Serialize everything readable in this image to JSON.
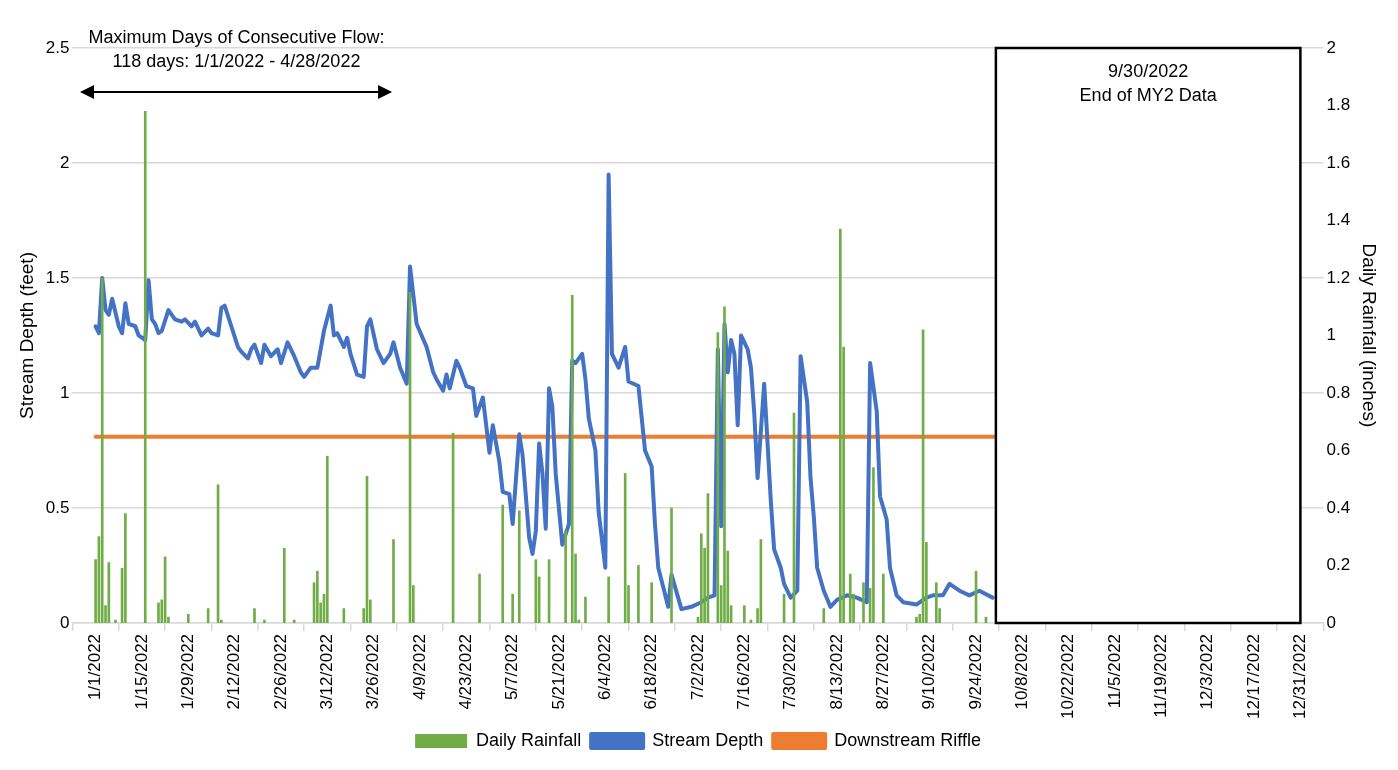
{
  "chart_data": {
    "type": "line",
    "xlim": [
      "2022-01-01",
      "2022-12-31"
    ],
    "xticks": [
      {
        "value": "2022-01-01",
        "label": "1/1/2022"
      },
      {
        "value": "2022-01-15",
        "label": "1/15/2022"
      },
      {
        "value": "2022-01-29",
        "label": "1/29/2022"
      },
      {
        "value": "2022-02-12",
        "label": "2/12/2022"
      },
      {
        "value": "2022-02-26",
        "label": "2/26/2022"
      },
      {
        "value": "2022-03-12",
        "label": "3/12/2022"
      },
      {
        "value": "2022-03-26",
        "label": "3/26/2022"
      },
      {
        "value": "2022-04-09",
        "label": "4/9/2022"
      },
      {
        "value": "2022-04-23",
        "label": "4/23/2022"
      },
      {
        "value": "2022-05-07",
        "label": "5/7/2022"
      },
      {
        "value": "2022-05-21",
        "label": "5/21/2022"
      },
      {
        "value": "2022-06-04",
        "label": "6/4/2022"
      },
      {
        "value": "2022-06-18",
        "label": "6/18/2022"
      },
      {
        "value": "2022-07-02",
        "label": "7/2/2022"
      },
      {
        "value": "2022-07-16",
        "label": "7/16/2022"
      },
      {
        "value": "2022-07-30",
        "label": "7/30/2022"
      },
      {
        "value": "2022-08-13",
        "label": "8/13/2022"
      },
      {
        "value": "2022-08-27",
        "label": "8/27/2022"
      },
      {
        "value": "2022-09-10",
        "label": "9/10/2022"
      },
      {
        "value": "2022-09-24",
        "label": "9/24/2022"
      },
      {
        "value": "2022-10-08",
        "label": "10/8/2022"
      },
      {
        "value": "2022-10-22",
        "label": "10/22/2022"
      },
      {
        "value": "2022-11-05",
        "label": "11/5/2022"
      },
      {
        "value": "2022-11-19",
        "label": "11/19/2022"
      },
      {
        "value": "2022-12-03",
        "label": "12/3/2022"
      },
      {
        "value": "2022-12-17",
        "label": "12/17/2022"
      },
      {
        "value": "2022-12-31",
        "label": "12/31/2022"
      }
    ],
    "ylim": [
      0,
      2.5
    ],
    "yticks": [
      0,
      0.5,
      1,
      1.5,
      2,
      2.5
    ],
    "y2lim": [
      0,
      2
    ],
    "y2ticks": [
      0,
      0.2,
      0.4,
      0.6,
      0.8,
      1,
      1.2,
      1.4,
      1.6,
      1.8,
      2
    ],
    "ylabel": "Stream Depth (feet)",
    "y2label": "Daily Rainfall (inches)",
    "grid": "y",
    "legend": "bottom",
    "marker": "none",
    "annotations": [
      "Maximum Days of Consecutive Flow:\n118 days: 1/1/2022 - 4/28/2022"
    ],
    "bands": [
      {
        "axis": "x",
        "from": "2022-09-30",
        "to": "2022-12-31",
        "label": "9/30/2022\nEnd of MY2 Data",
        "color": "#ffffff"
      }
    ],
    "series": [
      {
        "name": "Daily Rainfall",
        "type": "bar",
        "axis": "y2",
        "color": "#70ad47",
        "x": [
          "2022-01-01",
          "2022-01-02",
          "2022-01-03",
          "2022-01-04",
          "2022-01-05",
          "2022-01-07",
          "2022-01-09",
          "2022-01-10",
          "2022-01-16",
          "2022-01-20",
          "2022-01-21",
          "2022-01-22",
          "2022-01-23",
          "2022-01-29",
          "2022-02-04",
          "2022-02-07",
          "2022-02-08",
          "2022-02-18",
          "2022-02-21",
          "2022-02-27",
          "2022-03-02",
          "2022-03-08",
          "2022-03-09",
          "2022-03-10",
          "2022-03-11",
          "2022-03-12",
          "2022-03-17",
          "2022-03-23",
          "2022-03-24",
          "2022-03-25",
          "2022-04-01",
          "2022-04-06",
          "2022-04-07",
          "2022-04-19",
          "2022-04-27",
          "2022-05-04",
          "2022-05-07",
          "2022-05-09",
          "2022-05-14",
          "2022-05-15",
          "2022-05-18",
          "2022-05-23",
          "2022-05-25",
          "2022-05-26",
          "2022-05-27",
          "2022-05-29",
          "2022-06-05",
          "2022-06-10",
          "2022-06-11",
          "2022-06-14",
          "2022-06-18",
          "2022-06-24",
          "2022-07-02",
          "2022-07-03",
          "2022-07-04",
          "2022-07-05",
          "2022-07-08",
          "2022-07-09",
          "2022-07-10",
          "2022-07-11",
          "2022-07-12",
          "2022-07-16",
          "2022-07-18",
          "2022-07-20",
          "2022-07-21",
          "2022-07-28",
          "2022-07-31",
          "2022-08-09",
          "2022-08-14",
          "2022-08-15",
          "2022-08-17",
          "2022-08-18",
          "2022-08-21",
          "2022-08-23",
          "2022-08-24",
          "2022-08-27",
          "2022-09-06",
          "2022-09-07",
          "2022-09-08",
          "2022-09-09",
          "2022-09-12",
          "2022-09-13",
          "2022-09-24",
          "2022-09-27"
        ],
        "values": [
          0.22,
          0.3,
          1.2,
          0.06,
          0.21,
          0.01,
          0.19,
          0.38,
          1.78,
          0.07,
          0.08,
          0.23,
          0.02,
          0.03,
          0.05,
          0.48,
          0.01,
          0.05,
          0.01,
          0.26,
          0.01,
          0.14,
          0.18,
          0.07,
          0.1,
          0.58,
          0.05,
          0.05,
          0.51,
          0.08,
          0.29,
          1.15,
          0.13,
          0.66,
          0.17,
          0.41,
          0.1,
          0.39,
          0.22,
          0.16,
          0.22,
          0.32,
          1.14,
          0.24,
          0.01,
          0.09,
          0.16,
          0.52,
          0.13,
          0.2,
          0.14,
          0.4,
          0.02,
          0.31,
          0.26,
          0.45,
          1.01,
          0.13,
          1.1,
          0.25,
          0.06,
          0.06,
          0.01,
          0.05,
          0.29,
          0.1,
          0.73,
          0.05,
          1.37,
          0.96,
          0.17,
          0.1,
          0.14,
          0.12,
          0.54,
          0.17,
          0.02,
          0.03,
          1.02,
          0.28,
          0.14,
          0.05,
          0.18,
          0.02
        ]
      },
      {
        "name": "Stream Depth",
        "color": "#4472c4",
        "x": [
          "2022-01-01",
          "2022-01-02",
          "2022-01-03",
          "2022-01-04",
          "2022-01-05",
          "2022-01-06",
          "2022-01-07",
          "2022-01-08",
          "2022-01-09",
          "2022-01-10",
          "2022-01-11",
          "2022-01-13",
          "2022-01-14",
          "2022-01-16",
          "2022-01-17",
          "2022-01-18",
          "2022-01-19",
          "2022-01-20",
          "2022-01-21",
          "2022-01-23",
          "2022-01-25",
          "2022-01-27",
          "2022-01-28",
          "2022-01-30",
          "2022-01-31",
          "2022-02-02",
          "2022-02-04",
          "2022-02-05",
          "2022-02-07",
          "2022-02-08",
          "2022-02-09",
          "2022-02-11",
          "2022-02-13",
          "2022-02-14",
          "2022-02-16",
          "2022-02-17",
          "2022-02-18",
          "2022-02-20",
          "2022-02-21",
          "2022-02-23",
          "2022-02-25",
          "2022-02-26",
          "2022-02-28",
          "2022-03-02",
          "2022-03-04",
          "2022-03-05",
          "2022-03-07",
          "2022-03-09",
          "2022-03-11",
          "2022-03-13",
          "2022-03-14",
          "2022-03-15",
          "2022-03-17",
          "2022-03-18",
          "2022-03-19",
          "2022-03-21",
          "2022-03-23",
          "2022-03-24",
          "2022-03-25",
          "2022-03-27",
          "2022-03-29",
          "2022-03-31",
          "2022-04-01",
          "2022-04-03",
          "2022-04-05",
          "2022-04-06",
          "2022-04-08",
          "2022-04-11",
          "2022-04-13",
          "2022-04-14",
          "2022-04-16",
          "2022-04-17",
          "2022-04-18",
          "2022-04-20",
          "2022-04-21",
          "2022-04-23",
          "2022-04-25",
          "2022-04-26",
          "2022-04-28",
          "2022-04-30",
          "2022-05-01",
          "2022-05-03",
          "2022-05-04",
          "2022-05-06",
          "2022-05-07",
          "2022-05-09",
          "2022-05-10",
          "2022-05-12",
          "2022-05-13",
          "2022-05-14",
          "2022-05-15",
          "2022-05-16",
          "2022-05-17",
          "2022-05-18",
          "2022-05-19",
          "2022-05-20",
          "2022-05-22",
          "2022-05-24",
          "2022-05-25",
          "2022-05-26",
          "2022-05-28",
          "2022-05-29",
          "2022-05-30",
          "2022-06-01",
          "2022-06-02",
          "2022-06-04",
          "2022-06-05",
          "2022-06-06",
          "2022-06-08",
          "2022-06-10",
          "2022-06-11",
          "2022-06-14",
          "2022-06-16",
          "2022-06-18",
          "2022-06-19",
          "2022-06-20",
          "2022-06-23",
          "2022-06-24",
          "2022-06-25",
          "2022-06-27",
          "2022-06-30",
          "2022-07-03",
          "2022-07-05",
          "2022-07-07",
          "2022-07-08",
          "2022-07-09",
          "2022-07-10",
          "2022-07-11",
          "2022-07-12",
          "2022-07-13",
          "2022-07-14",
          "2022-07-15",
          "2022-07-17",
          "2022-07-18",
          "2022-07-19",
          "2022-07-20",
          "2022-07-22",
          "2022-07-24",
          "2022-07-25",
          "2022-07-27",
          "2022-07-28",
          "2022-07-30",
          "2022-08-01",
          "2022-08-02",
          "2022-08-04",
          "2022-08-05",
          "2022-08-06",
          "2022-08-07",
          "2022-08-09",
          "2022-08-11",
          "2022-08-13",
          "2022-08-16",
          "2022-08-19",
          "2022-08-22",
          "2022-08-23",
          "2022-08-25",
          "2022-08-26",
          "2022-08-28",
          "2022-08-29",
          "2022-08-31",
          "2022-09-02",
          "2022-09-06",
          "2022-09-09",
          "2022-09-11",
          "2022-09-14",
          "2022-09-16",
          "2022-09-19",
          "2022-09-22",
          "2022-09-25",
          "2022-09-29"
        ],
        "values": [
          1.29,
          1.26,
          1.5,
          1.36,
          1.34,
          1.41,
          1.35,
          1.29,
          1.26,
          1.39,
          1.3,
          1.29,
          1.25,
          1.23,
          1.49,
          1.32,
          1.3,
          1.26,
          1.27,
          1.36,
          1.32,
          1.31,
          1.32,
          1.29,
          1.31,
          1.25,
          1.28,
          1.26,
          1.25,
          1.37,
          1.38,
          1.29,
          1.2,
          1.18,
          1.15,
          1.19,
          1.21,
          1.13,
          1.21,
          1.16,
          1.19,
          1.13,
          1.22,
          1.16,
          1.09,
          1.07,
          1.11,
          1.11,
          1.27,
          1.38,
          1.25,
          1.26,
          1.2,
          1.24,
          1.17,
          1.08,
          1.07,
          1.29,
          1.32,
          1.19,
          1.13,
          1.17,
          1.22,
          1.11,
          1.04,
          1.55,
          1.3,
          1.2,
          1.09,
          1.06,
          1.01,
          1.08,
          1.02,
          1.14,
          1.11,
          1.03,
          1.02,
          0.9,
          0.98,
          0.74,
          0.86,
          0.7,
          0.57,
          0.56,
          0.43,
          0.82,
          0.73,
          0.37,
          0.3,
          0.4,
          0.78,
          0.65,
          0.41,
          1.02,
          0.94,
          0.65,
          0.34,
          0.43,
          1.14,
          1.13,
          1.17,
          1.06,
          0.89,
          0.75,
          0.48,
          0.24,
          1.95,
          1.17,
          1.11,
          1.2,
          1.05,
          1.03,
          0.75,
          0.68,
          0.43,
          0.24,
          0.07,
          0.21,
          0.16,
          0.06,
          0.07,
          0.09,
          0.11,
          0.12,
          1.19,
          0.42,
          1.3,
          1.09,
          1.23,
          1.17,
          0.86,
          1.25,
          1.19,
          1.11,
          0.91,
          0.63,
          1.04,
          0.53,
          0.32,
          0.24,
          0.17,
          0.11,
          0.14,
          1.16,
          0.96,
          0.63,
          0.46,
          0.24,
          0.14,
          0.07,
          0.1,
          0.12,
          0.11,
          0.09,
          1.13,
          0.92,
          0.55,
          0.45,
          0.24,
          0.12,
          0.09,
          0.08,
          0.11,
          0.12,
          0.12,
          0.17,
          0.14,
          0.12,
          0.14,
          0.11
        ]
      },
      {
        "name": "Downstream Riffle",
        "color": "#ed7d31",
        "x": [
          "2022-01-01",
          "2022-09-30"
        ],
        "values": [
          0.81,
          0.81
        ]
      }
    ]
  }
}
